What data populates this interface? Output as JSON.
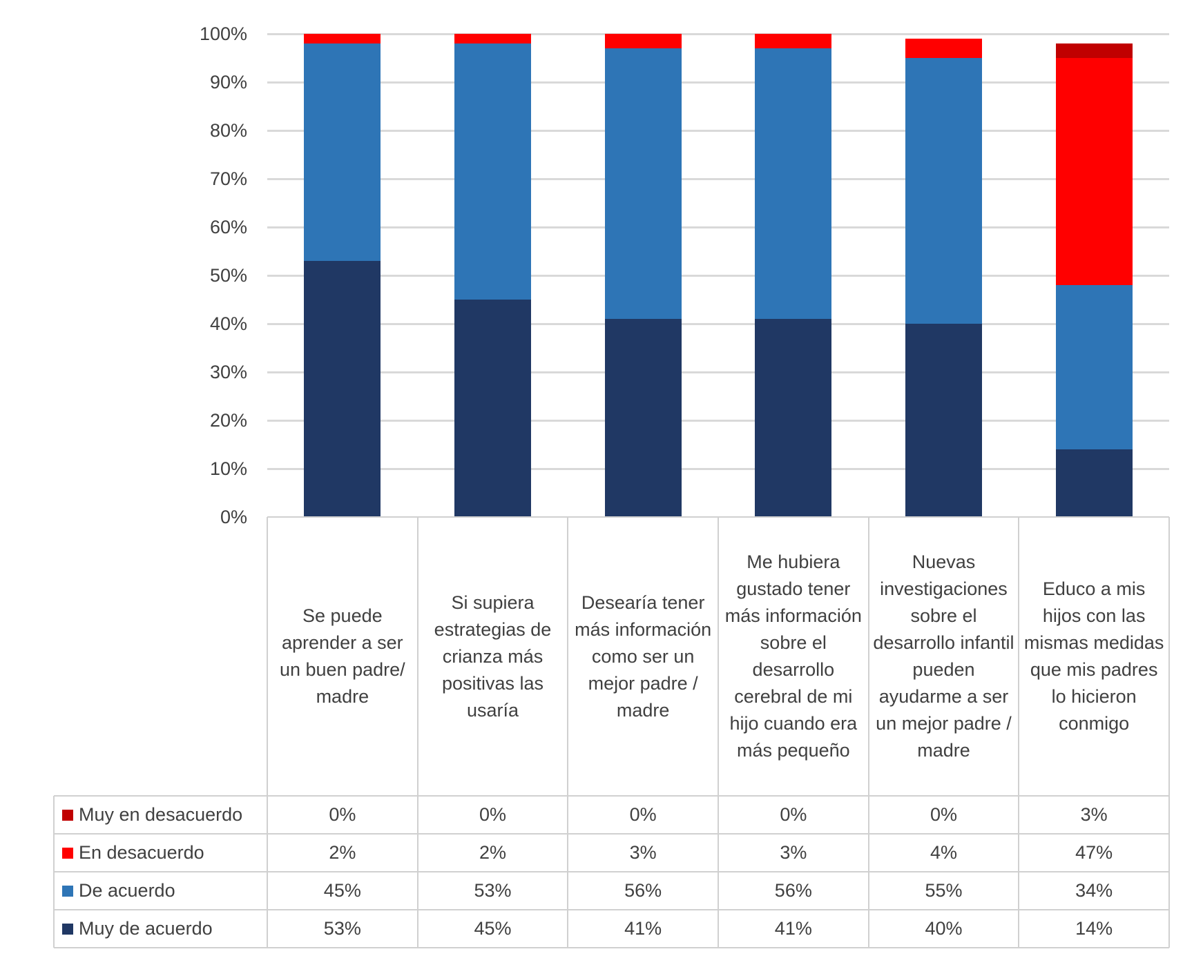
{
  "chart_data": {
    "type": "bar",
    "stacked": true,
    "title": "",
    "xlabel": "",
    "ylabel": "",
    "ylim": [
      0,
      100
    ],
    "yticks": [
      "0%",
      "10%",
      "20%",
      "30%",
      "40%",
      "50%",
      "60%",
      "70%",
      "80%",
      "90%",
      "100%"
    ],
    "grid": true,
    "legend": "data-table-left",
    "categories": [
      "Se puede aprender a ser un buen padre/ madre",
      "Si supiera estrategias de crianza más positivas las usaría",
      "Desearía tener más información como ser un mejor padre / madre",
      "Me hubiera gustado tener más información sobre el desarrollo cerebral de mi hijo cuando era más pequeño",
      "Nuevas investigaciones sobre el desarrollo infantil pueden ayudarme a ser un mejor padre / madre",
      "Educo a mis hijos con las mismas medidas que mis padres lo hicieron conmigo"
    ],
    "series": [
      {
        "name": "Muy en desacuerdo",
        "color": "#C00000",
        "values": [
          0,
          0,
          0,
          0,
          0,
          3
        ],
        "labels": [
          "0%",
          "0%",
          "0%",
          "0%",
          "0%",
          "3%"
        ]
      },
      {
        "name": "En desacuerdo",
        "color": "#FF0000",
        "values": [
          2,
          2,
          3,
          3,
          4,
          47
        ],
        "labels": [
          "2%",
          "2%",
          "3%",
          "3%",
          "4%",
          "47%"
        ]
      },
      {
        "name": "De acuerdo",
        "color": "#2E75B6",
        "values": [
          45,
          53,
          56,
          56,
          55,
          34
        ],
        "labels": [
          "45%",
          "53%",
          "56%",
          "56%",
          "55%",
          "34%"
        ]
      },
      {
        "name": "Muy de acuerdo",
        "color": "#203864",
        "values": [
          53,
          45,
          41,
          41,
          40,
          14
        ],
        "labels": [
          "53%",
          "45%",
          "41%",
          "41%",
          "40%",
          "14%"
        ]
      }
    ]
  }
}
